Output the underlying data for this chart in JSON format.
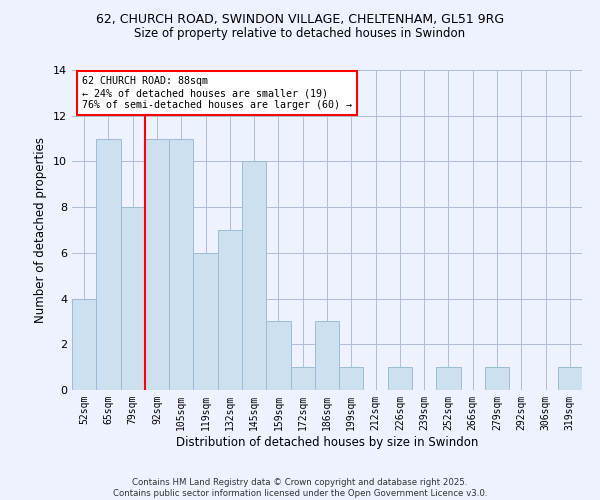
{
  "title1": "62, CHURCH ROAD, SWINDON VILLAGE, CHELTENHAM, GL51 9RG",
  "title2": "Size of property relative to detached houses in Swindon",
  "xlabel": "Distribution of detached houses by size in Swindon",
  "ylabel": "Number of detached properties",
  "categories": [
    "52sqm",
    "65sqm",
    "79sqm",
    "92sqm",
    "105sqm",
    "119sqm",
    "132sqm",
    "145sqm",
    "159sqm",
    "172sqm",
    "186sqm",
    "199sqm",
    "212sqm",
    "226sqm",
    "239sqm",
    "252sqm",
    "266sqm",
    "279sqm",
    "292sqm",
    "306sqm",
    "319sqm"
  ],
  "values": [
    4,
    11,
    8,
    11,
    11,
    6,
    7,
    10,
    3,
    1,
    3,
    1,
    0,
    1,
    0,
    1,
    0,
    1,
    0,
    0,
    1
  ],
  "bar_color": "#cce0f0",
  "bar_edge_color": "#9abcd4",
  "red_line_index": 2.5,
  "annotation_text": "62 CHURCH ROAD: 88sqm\n← 24% of detached houses are smaller (19)\n76% of semi-detached houses are larger (60) →",
  "footer": "Contains HM Land Registry data © Crown copyright and database right 2025.\nContains public sector information licensed under the Open Government Licence v3.0.",
  "ylim": [
    0,
    14
  ],
  "yticks": [
    0,
    2,
    4,
    6,
    8,
    10,
    12,
    14
  ],
  "background_color": "#eef2ff"
}
